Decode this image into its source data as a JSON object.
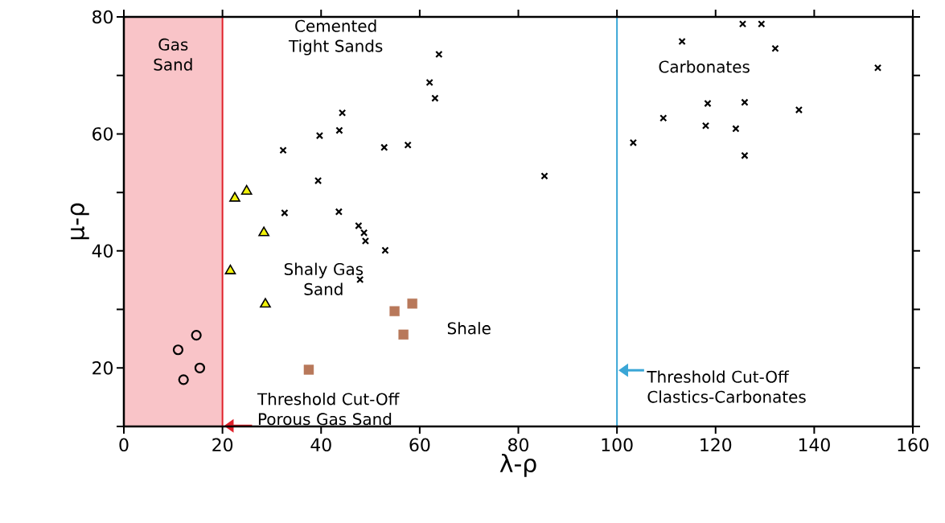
{
  "chart_data": {
    "type": "scatter",
    "xlabel": "λ-ρ",
    "ylabel": "μ-ρ",
    "xlim": [
      0,
      160
    ],
    "ylim": [
      10,
      80
    ],
    "xticks": [
      0,
      20,
      40,
      60,
      80,
      100,
      120,
      140,
      160
    ],
    "yticks": [
      {
        "value": 10,
        "label": null
      },
      20,
      {
        "value": 30,
        "label": null
      },
      40,
      {
        "value": 50,
        "label": null
      },
      60,
      {
        "value": 70,
        "label": null
      },
      80
    ],
    "grid": false,
    "series": [
      {
        "marker": "circle",
        "color": "#000000",
        "x": [
          11.0,
          14.7,
          15.4,
          12.1
        ],
        "values": [
          23.1,
          25.6,
          20.0,
          18.0
        ]
      },
      {
        "marker": "triangle",
        "color": "#f2f20a",
        "x": [
          22.5,
          24.9,
          28.4,
          21.6,
          28.7
        ],
        "values": [
          49.0,
          50.2,
          43.1,
          36.6,
          30.9
        ]
      },
      {
        "marker": "square",
        "color": "#b8785a",
        "x": [
          54.9,
          58.5,
          56.7,
          37.5
        ],
        "values": [
          29.7,
          31.0,
          25.7,
          19.7
        ]
      },
      {
        "marker": "cross",
        "color": "#000000",
        "x": [
          63.9,
          62.0,
          63.1,
          44.3,
          43.7,
          39.7,
          32.3,
          52.8,
          57.6,
          85.3,
          39.4,
          32.6,
          43.6,
          47.6,
          48.7,
          49.0,
          53.0,
          47.9,
          125.5,
          129.3,
          113.2,
          132.1,
          152.9,
          118.4,
          125.9,
          136.9,
          109.4,
          118.0,
          124.1,
          103.3,
          125.9
        ],
        "values": [
          73.6,
          68.8,
          66.1,
          63.6,
          60.6,
          59.7,
          57.2,
          57.7,
          58.1,
          52.8,
          52.0,
          46.5,
          46.7,
          44.3,
          43.1,
          41.7,
          40.1,
          35.1,
          78.8,
          78.8,
          75.8,
          74.6,
          71.3,
          65.2,
          65.4,
          64.1,
          62.7,
          61.4,
          60.9,
          58.5,
          56.3
        ]
      }
    ],
    "bands": [
      {
        "axis": "x",
        "from": 0,
        "to": 20,
        "label": "Gas Sand",
        "color": "#f9c4c8"
      }
    ],
    "ref_lines": [
      {
        "axis": "x",
        "value": 20,
        "label": "Threshold Cut-Off Porous Gas Sand",
        "color": "#e0202a"
      },
      {
        "axis": "x",
        "value": 100,
        "label": "Threshold Cut-Off Clastics-Carbonates",
        "color": "#3aa6d6"
      }
    ],
    "annotations": [
      "Cemented Tight Sands",
      "Shaly Gas Sand",
      "Shale",
      "Carbonates"
    ]
  }
}
